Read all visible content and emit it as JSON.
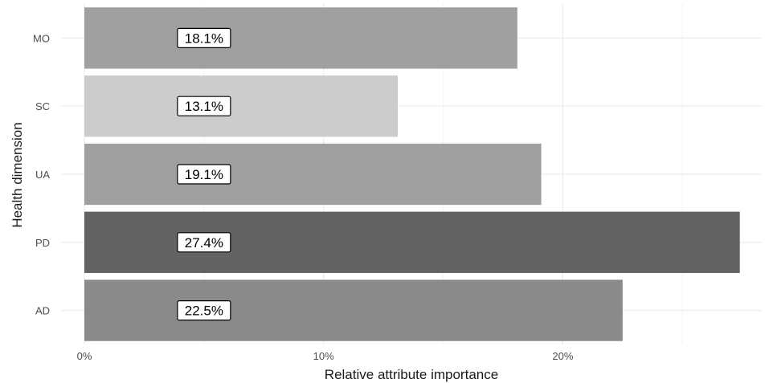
{
  "chart_data": {
    "type": "bar",
    "orientation": "horizontal",
    "title": "",
    "xlabel": "Relative attribute importance",
    "ylabel": "Health dimension",
    "categories": [
      "AD",
      "PD",
      "UA",
      "SC",
      "MO"
    ],
    "values": [
      22.5,
      27.4,
      19.1,
      13.1,
      18.1
    ],
    "data_labels": [
      "22.5%",
      "27.4%",
      "19.1%",
      "13.1%",
      "18.1%"
    ],
    "bar_colors": [
      "#8a8a8a",
      "#636363",
      "#a0a0a0",
      "#cccccc",
      "#a0a0a0"
    ],
    "xlim": [
      0,
      28
    ],
    "x_ticks": [
      0,
      10,
      20
    ],
    "x_tick_labels": [
      "0%",
      "10%",
      "20%"
    ],
    "grid": true,
    "legend": "none"
  }
}
